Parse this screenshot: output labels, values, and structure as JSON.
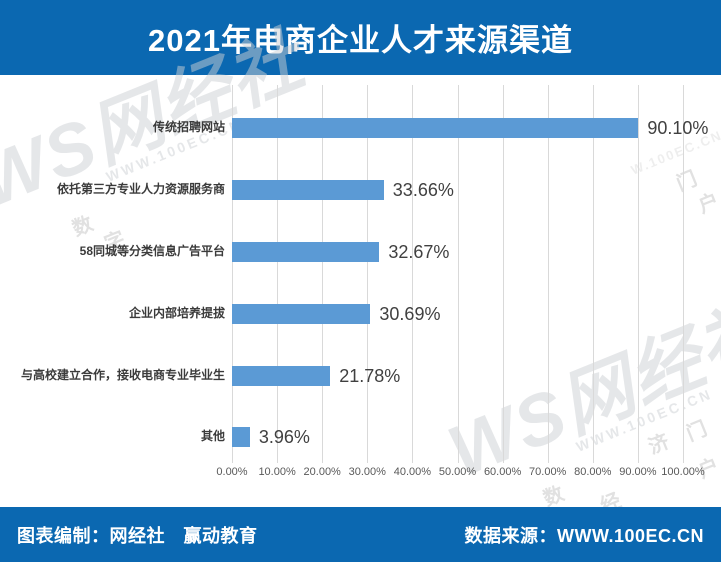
{
  "header": {
    "title": "2021年电商企业人才来源渠道"
  },
  "chart_data": {
    "type": "bar",
    "orientation": "horizontal",
    "title": "2021年电商企业人才来源渠道",
    "categories": [
      "传统招聘网站",
      "依托第三方专业人力资源服务商",
      "58同城等分类信息广告平台",
      "企业内部培养提拔",
      "与高校建立合作，接收电商专业毕业生",
      "其他"
    ],
    "values": [
      90.1,
      33.66,
      32.67,
      30.69,
      21.78,
      3.96
    ],
    "value_labels": [
      "90.10%",
      "33.66%",
      "32.67%",
      "30.69%",
      "21.78%",
      "3.96%"
    ],
    "x_tick_labels": [
      "0.00%",
      "10.00%",
      "20.00%",
      "30.00%",
      "40.00%",
      "50.00%",
      "60.00%",
      "70.00%",
      "80.00%",
      "90.00%",
      "100.00%"
    ],
    "xlim": [
      0,
      100
    ],
    "xlabel": "",
    "ylabel": "",
    "grid": "vertical",
    "legend": "none",
    "bar_color": "#5B9AD5",
    "grid_color": "#D9D9D9"
  },
  "footer": {
    "left": "图表编制：网经社　赢动教育",
    "right": "数据来源：WWW.100EC.CN"
  },
  "watermark": {
    "brand": "WS网经社",
    "url": "WWW.100EC.CN",
    "url_fragment": "W.100EC.CN",
    "chars_topleft": [
      "数",
      "字"
    ],
    "chars_topright": [
      "门",
      "户"
    ],
    "chars_bottomright": [
      "济",
      "门",
      "户",
      "数",
      "经"
    ]
  },
  "colors": {
    "banner_blue": "#0B68B1",
    "bar_blue": "#5B9AD5",
    "grid_gray": "#D9D9D9",
    "label_dark": "#3B3B3B",
    "value_dark": "#404040",
    "tick_gray": "#595959",
    "title_white": "#FFFFFF"
  }
}
